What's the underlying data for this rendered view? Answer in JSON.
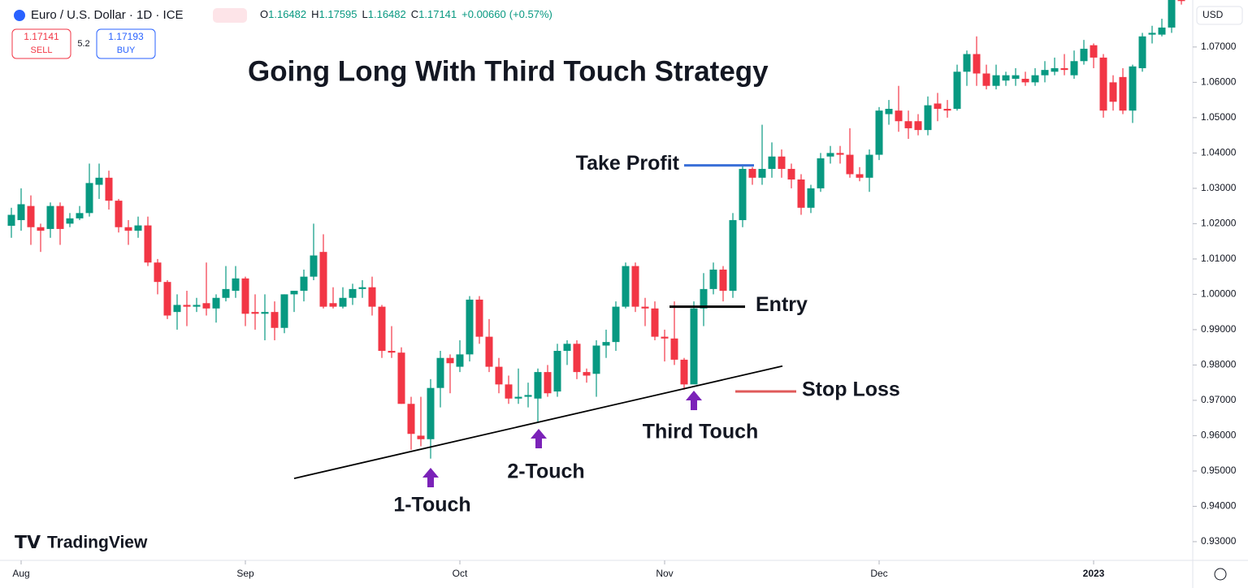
{
  "header": {
    "symbol": "Euro / U.S. Dollar · 1D · ICE",
    "ohlc": [
      {
        "key": "O",
        "value": "1.16482"
      },
      {
        "key": "H",
        "value": "1.17595"
      },
      {
        "key": "L",
        "value": "1.16482"
      },
      {
        "key": "C",
        "value": "1.17141"
      }
    ],
    "change": "+0.00660",
    "change_pct": "(+0.57%)",
    "sell": {
      "price": "1.17141",
      "label": "SELL"
    },
    "spread": "5.2",
    "buy": {
      "price": "1.17193",
      "label": "BUY"
    },
    "currency": "USD",
    "brand": "TradingView"
  },
  "chart_data": {
    "type": "candlestick",
    "title": "Going Long With Third Touch Strategy",
    "up_color": "#089981",
    "down_color": "#f23645",
    "categories": [
      null,
      "Aug",
      null,
      null,
      null,
      null,
      null,
      null,
      null,
      null,
      null,
      null,
      null,
      null,
      null,
      null,
      null,
      null,
      null,
      null,
      null,
      null,
      null,
      null,
      "Sep",
      null,
      null,
      null,
      null,
      null,
      null,
      null,
      null,
      null,
      null,
      null,
      null,
      null,
      null,
      null,
      null,
      null,
      null,
      null,
      null,
      null,
      "Oct",
      null,
      null,
      null,
      null,
      null,
      null,
      null,
      null,
      null,
      null,
      null,
      null,
      null,
      null,
      null,
      null,
      null,
      null,
      null,
      null,
      "Nov",
      null,
      null,
      null,
      null,
      null,
      null,
      null,
      null,
      null,
      null,
      null,
      null,
      null,
      null,
      null,
      null,
      null,
      null,
      null,
      null,
      null,
      "Dec",
      null,
      null,
      null,
      null,
      null,
      null,
      null,
      null,
      null,
      null,
      null,
      null,
      null,
      null,
      null,
      null,
      null,
      null,
      null,
      null,
      null,
      "2023",
      null,
      null,
      null,
      null,
      null,
      null,
      null,
      null,
      null
    ],
    "open": [
      1.0194,
      1.021,
      1.025,
      1.019,
      1.0185,
      1.025,
      1.02,
      1.0215,
      1.023,
      1.031,
      1.033,
      1.0265,
      1.019,
      1.018,
      1.0195,
      1.009,
      1.0035,
      0.995,
      0.997,
      0.9965,
      0.9975,
      0.996,
      0.999,
      1.001,
      1.0045,
      0.995,
      0.9945,
      0.995,
      0.9905,
      1.0,
      1.001,
      1.005,
      1.012,
      0.9975,
      0.9965,
      0.999,
      1.0015,
      1.002,
      0.9965,
      0.984,
      0.9835,
      0.969,
      0.96,
      0.959,
      0.9735,
      0.982,
      0.9795,
      0.983,
      0.9985,
      0.988,
      0.9795,
      0.9745,
      0.9705,
      0.971,
      0.9705,
      0.978,
      0.9725,
      0.984,
      0.986,
      0.978,
      0.9775,
      0.9855,
      0.9865,
      0.9965,
      1.008,
      0.9965,
      0.996,
      0.988,
      0.9875,
      0.9815,
      0.9745,
      0.996,
      1.0015,
      1.007,
      1.001,
      1.021,
      1.0355,
      1.033,
      1.0355,
      1.039,
      1.0355,
      1.0325,
      1.0245,
      1.03,
      1.039,
      1.04,
      1.0395,
      1.034,
      1.033,
      1.0395,
      1.051,
      1.052,
      1.049,
      1.049,
      1.0465,
      1.054,
      1.0525,
      1.0525,
      1.063,
      1.068,
      1.0625,
      1.059,
      1.0605,
      1.061,
      1.061,
      1.06,
      1.062,
      1.063,
      1.064,
      1.062,
      1.066,
      1.0705,
      1.067,
      1.06,
      1.0615,
      1.052,
      1.064,
      1.0735,
      1.0735,
      1.0755,
      1.084
    ],
    "close": [
      1.0225,
      1.0255,
      1.019,
      1.018,
      1.025,
      1.0185,
      1.0215,
      1.023,
      1.0315,
      1.033,
      1.0265,
      1.019,
      1.018,
      1.0195,
      1.009,
      1.0035,
      0.994,
      0.997,
      0.9965,
      0.997,
      0.996,
      0.999,
      1.0015,
      1.0045,
      0.9945,
      0.9945,
      0.995,
      0.9905,
      1.0,
      1.001,
      1.005,
      1.011,
      0.9965,
      0.9965,
      0.999,
      1.0015,
      1.002,
      0.9965,
      0.984,
      0.9835,
      0.969,
      0.9605,
      0.959,
      0.9735,
      0.982,
      0.9805,
      0.983,
      0.9985,
      0.988,
      0.9795,
      0.9745,
      0.9705,
      0.971,
      0.9715,
      0.978,
      0.972,
      0.984,
      0.986,
      0.978,
      0.977,
      0.9855,
      0.9865,
      0.9965,
      1.008,
      0.9965,
      0.996,
      0.988,
      0.9875,
      0.9815,
      0.9745,
      0.996,
      1.0015,
      1.007,
      1.001,
      1.021,
      1.0355,
      1.033,
      1.0355,
      1.039,
      1.0355,
      1.0325,
      1.0245,
      1.03,
      1.0385,
      1.04,
      1.0395,
      1.034,
      1.033,
      1.0395,
      1.052,
      1.0525,
      1.049,
      1.047,
      1.0465,
      1.0535,
      1.0525,
      1.052,
      1.063,
      1.068,
      1.0625,
      1.059,
      1.062,
      1.062,
      1.062,
      1.06,
      1.062,
      1.0635,
      1.064,
      1.0635,
      1.066,
      1.0695,
      1.067,
      1.052,
      1.0545,
      1.052,
      1.0645,
      1.073,
      1.074,
      1.0755,
      1.0855,
      1.083
    ],
    "high": [
      1.0245,
      1.03,
      1.028,
      1.02,
      1.026,
      1.026,
      1.023,
      1.025,
      1.037,
      1.037,
      1.035,
      1.027,
      1.021,
      1.022,
      1.022,
      1.01,
      1.004,
      1.0,
      1.001,
      0.999,
      1.009,
      1.0,
      1.008,
      1.008,
      1.005,
      1.0,
      1.0,
      0.998,
      1.0,
      1.001,
      1.007,
      1.02,
      1.017,
      1.002,
      1.002,
      1.003,
      1.004,
      1.005,
      0.997,
      0.991,
      0.985,
      0.971,
      0.971,
      0.976,
      0.984,
      0.983,
      0.987,
      0.9995,
      0.9995,
      0.993,
      0.982,
      0.977,
      0.979,
      0.975,
      0.979,
      0.98,
      0.986,
      0.987,
      0.987,
      0.979,
      0.987,
      0.99,
      0.998,
      1.009,
      1.009,
      0.999,
      0.998,
      0.99,
      0.998,
      0.982,
      0.998,
      1.006,
      1.009,
      1.008,
      1.023,
      1.0365,
      1.036,
      1.048,
      1.043,
      1.041,
      1.037,
      1.034,
      1.031,
      1.04,
      1.042,
      1.042,
      1.047,
      1.036,
      1.041,
      1.053,
      1.055,
      1.059,
      1.052,
      1.051,
      1.056,
      1.057,
      1.055,
      1.065,
      1.069,
      1.073,
      1.065,
      1.065,
      1.063,
      1.064,
      1.063,
      1.064,
      1.066,
      1.067,
      1.068,
      1.069,
      1.072,
      1.071,
      1.068,
      1.062,
      1.064,
      1.065,
      1.074,
      1.076,
      1.078,
      1.087,
      1.085
    ],
    "low": [
      1.016,
      1.018,
      1.014,
      1.012,
      1.016,
      1.014,
      1.019,
      1.021,
      1.022,
      1.027,
      1.024,
      1.0175,
      1.014,
      1.016,
      1.008,
      1.0,
      0.993,
      0.99,
      0.991,
      0.995,
      0.994,
      0.992,
      0.998,
      0.999,
      0.991,
      0.99,
      0.987,
      0.987,
      0.989,
      0.995,
      0.998,
      1.004,
      0.996,
      0.996,
      0.996,
      0.997,
      0.999,
      0.994,
      0.982,
      0.982,
      0.969,
      0.956,
      0.957,
      0.9535,
      0.968,
      0.972,
      0.978,
      0.981,
      0.986,
      0.978,
      0.972,
      0.969,
      0.969,
      0.968,
      0.964,
      0.971,
      0.971,
      0.98,
      0.976,
      0.975,
      0.971,
      0.982,
      0.984,
      0.996,
      0.995,
      0.991,
      0.987,
      0.981,
      0.98,
      0.973,
      0.975,
      0.991,
      1.0,
      0.998,
      0.999,
      1.019,
      1.031,
      1.031,
      1.033,
      1.033,
      1.03,
      1.0225,
      1.023,
      1.029,
      1.037,
      1.037,
      1.033,
      1.032,
      1.029,
      1.038,
      1.048,
      1.046,
      1.044,
      1.045,
      1.045,
      1.049,
      1.05,
      1.052,
      1.059,
      1.059,
      1.058,
      1.058,
      1.059,
      1.059,
      1.059,
      1.059,
      1.06,
      1.062,
      1.062,
      1.061,
      1.065,
      1.064,
      1.05,
      1.052,
      1.051,
      1.0485,
      1.063,
      1.071,
      1.073,
      1.074,
      1.082
    ],
    "ylim": [
      0.9247,
      1.0833
    ],
    "yticks": [
      {
        "value": 0.93,
        "label": "0.93000"
      },
      {
        "value": 0.94,
        "label": "0.94000"
      },
      {
        "value": 0.95,
        "label": "0.95000"
      },
      {
        "value": 0.96,
        "label": "0.96000"
      },
      {
        "value": 0.97,
        "label": "0.97000"
      },
      {
        "value": 0.98,
        "label": "0.98000"
      },
      {
        "value": 0.99,
        "label": "0.99000"
      },
      {
        "value": 1.0,
        "label": "1.00000"
      },
      {
        "value": 1.01,
        "label": "1.01000"
      },
      {
        "value": 1.02,
        "label": "1.02000"
      },
      {
        "value": 1.03,
        "label": "1.03000"
      },
      {
        "value": 1.04,
        "label": "1.04000"
      },
      {
        "value": 1.05,
        "label": "1.05000"
      },
      {
        "value": 1.06,
        "label": "1.06000"
      },
      {
        "value": 1.07,
        "label": "1.07000"
      }
    ],
    "trendline": {
      "values": [
        0.9479,
        0.9797
      ],
      "color": "#000000"
    },
    "levels": [
      {
        "label": "Take Profit",
        "value": 1.0365,
        "color": "#3a6fd8"
      },
      {
        "label": "Entry",
        "value": 0.9965,
        "color": "#000000"
      },
      {
        "label": "Stop Loss",
        "value": 0.9725,
        "color": "#e05a5a"
      }
    ],
    "touches": [
      {
        "label": "1-Touch"
      },
      {
        "label": "2-Touch"
      },
      {
        "label": "Third Touch"
      }
    ],
    "arrow_color": "#7b22b8"
  }
}
